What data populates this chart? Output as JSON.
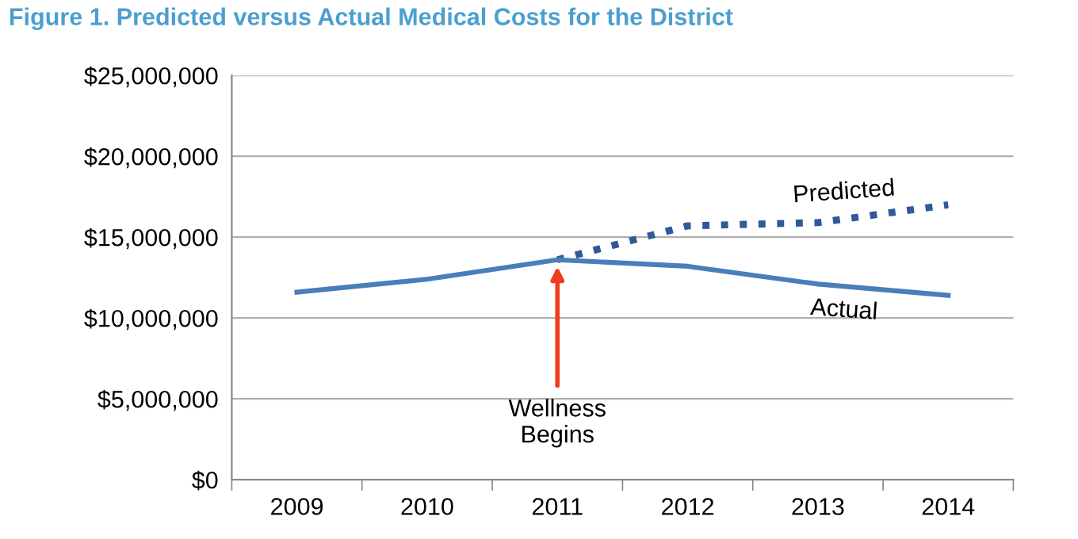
{
  "chart_data": {
    "type": "line",
    "title": "Figure 1. Predicted versus Actual Medical Costs for the District",
    "categories": [
      "2009",
      "2010",
      "2011",
      "2012",
      "2013",
      "2014"
    ],
    "series": [
      {
        "name": "Actual",
        "color": "#4a7ebb",
        "line_style": "solid",
        "values": [
          11600000,
          12400000,
          13600000,
          13200000,
          12100000,
          11400000
        ]
      },
      {
        "name": "Predicted",
        "color": "#2e5a96",
        "line_style": "dotted",
        "values": [
          null,
          null,
          13600000,
          15700000,
          15900000,
          17000000
        ]
      }
    ],
    "ylim": [
      0,
      25000000
    ],
    "yticks": [
      {
        "value": 0,
        "label": "$0"
      },
      {
        "value": 5000000,
        "label": "$5,000,000"
      },
      {
        "value": 10000000,
        "label": "$10,000,000"
      },
      {
        "value": 15000000,
        "label": "$15,000,000"
      },
      {
        "value": 20000000,
        "label": "$20,000,000"
      },
      {
        "value": 25000000,
        "label": "$25,000,000"
      }
    ],
    "grid": "y",
    "legend": false,
    "marker": "none",
    "annotations": [
      {
        "text": "Wellness\nBegins",
        "x": "2011",
        "y": 13600000
      }
    ]
  }
}
